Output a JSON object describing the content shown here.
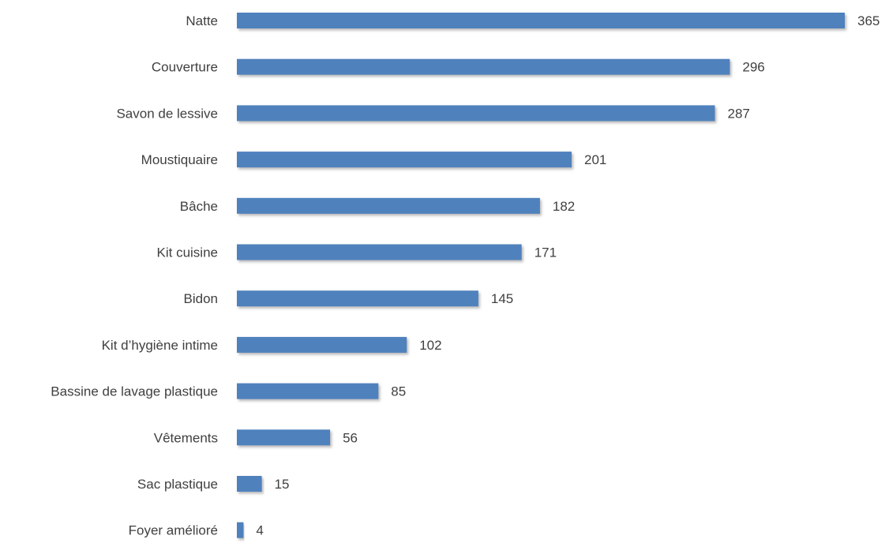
{
  "chart_data": {
    "type": "bar",
    "orientation": "horizontal",
    "categories": [
      "Natte",
      "Couverture",
      "Savon de lessive",
      "Moustiquaire",
      "Bâche",
      "Kit cuisine",
      "Bidon",
      "Kit d’hygiène intime",
      "Bassine de lavage plastique",
      "Vêtements",
      "Sac plastique",
      "Foyer amélioré"
    ],
    "values": [
      365,
      296,
      287,
      201,
      182,
      171,
      145,
      102,
      85,
      56,
      15,
      4
    ],
    "value_labels": [
      "365",
      "296",
      "287",
      "201",
      "182",
      "171",
      "145",
      "102",
      "85",
      "56",
      "15",
      "4"
    ],
    "title": "",
    "xlabel": "",
    "ylabel": "",
    "xlim": [
      0,
      365
    ],
    "grid": false,
    "legend": "none",
    "bar_color": "#4F81BD",
    "bar_shadow_color": "#A6A6A6",
    "text_color": "#404040"
  }
}
